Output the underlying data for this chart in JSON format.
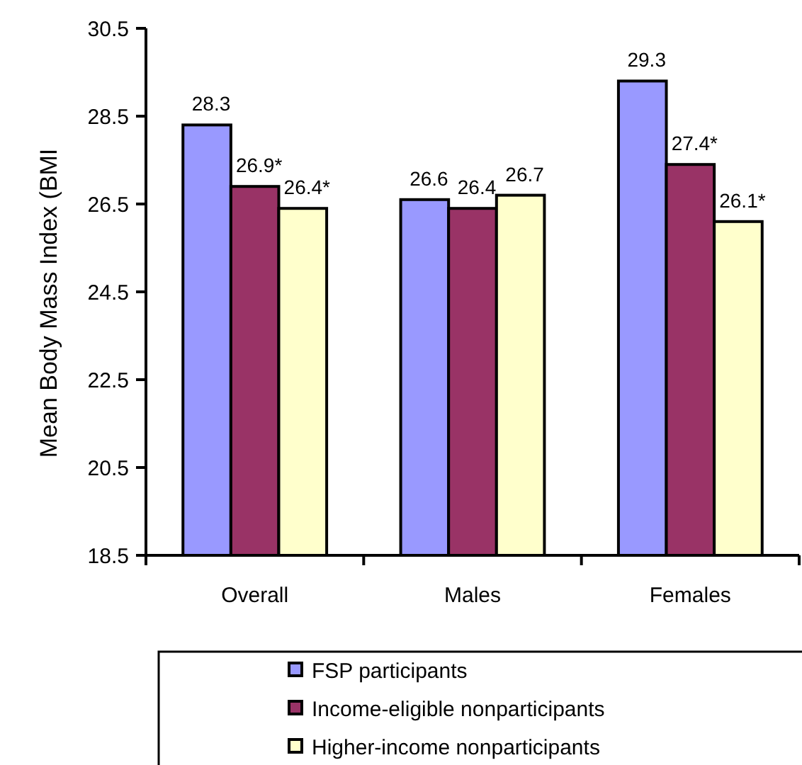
{
  "chart_data": {
    "type": "bar",
    "ylabel": "Mean Body Mass Index (BMI",
    "categories": [
      "Overall",
      "Males",
      "Females"
    ],
    "series": [
      {
        "name": "FSP participants",
        "color": "#9999ff",
        "values": [
          28.3,
          26.6,
          29.3
        ],
        "value_labels": [
          "28.3",
          "26.6",
          "29.3"
        ]
      },
      {
        "name": "Income-eligible nonparticipants",
        "color": "#993366",
        "values": [
          26.9,
          26.4,
          27.4
        ],
        "value_labels": [
          "26.9*",
          "26.4",
          "27.4*"
        ]
      },
      {
        "name": "Higher-income nonparticipants",
        "color": "#ffffcc",
        "values": [
          26.4,
          26.7,
          26.1
        ],
        "value_labels": [
          "26.4*",
          "26.7",
          "26.1*"
        ]
      }
    ],
    "ylim": [
      18.5,
      30.5
    ],
    "yticks": [
      18.5,
      20.5,
      22.5,
      24.5,
      26.5,
      28.5,
      30.5
    ],
    "legend": "bottom"
  }
}
